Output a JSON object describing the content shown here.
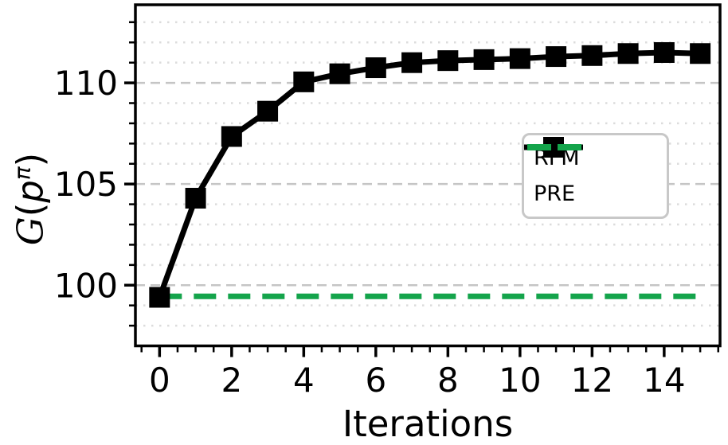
{
  "chart_data": {
    "type": "line",
    "title": "",
    "xlabel": "Iterations",
    "ylabel_parts": {
      "func": "G",
      "open": "(",
      "var": "p",
      "sup": "π",
      "close": ")"
    },
    "x": [
      0,
      1,
      2,
      3,
      4,
      5,
      6,
      7,
      8,
      9,
      10,
      11,
      12,
      13,
      14,
      15
    ],
    "series": [
      {
        "name": "RFM",
        "color": "#000000",
        "style": "solid",
        "marker": "square",
        "values": [
          99.4,
          104.3,
          107.35,
          108.6,
          110.05,
          110.45,
          110.75,
          111.0,
          111.1,
          111.15,
          111.2,
          111.3,
          111.35,
          111.45,
          111.5,
          111.45
        ]
      },
      {
        "name": "PRE",
        "color": "#14a44b",
        "style": "dashed",
        "marker": "none",
        "values": [
          99.45,
          99.45,
          99.45,
          99.45,
          99.45,
          99.45,
          99.45,
          99.45,
          99.45,
          99.45,
          99.45,
          99.45,
          99.45,
          99.45,
          99.45,
          99.45
        ]
      }
    ],
    "xlim": [
      -0.67,
      15.55
    ],
    "ylim": [
      97.0,
      113.86
    ],
    "x_major_ticks": [
      0,
      2,
      4,
      6,
      8,
      10,
      12,
      14
    ],
    "x_tick_labels": [
      "0",
      "2",
      "4",
      "6",
      "8",
      "10",
      "12",
      "14"
    ],
    "x_minor_step": 0.5,
    "y_major_ticks": [
      100,
      105,
      110
    ],
    "y_tick_labels": [
      "100",
      "105",
      "110"
    ],
    "y_minor_step": 1,
    "grid": {
      "major": "dashed-horizontal",
      "minor": "dotted-horizontal",
      "vertical": false
    },
    "legend_position": "center-right",
    "colors": {
      "axis": "#000000",
      "text": "#000000",
      "grid_major": "#c5c5c5",
      "grid_minor": "#dcdcdc",
      "legend_border": "#c8c8c8",
      "background": "#ffffff"
    }
  }
}
